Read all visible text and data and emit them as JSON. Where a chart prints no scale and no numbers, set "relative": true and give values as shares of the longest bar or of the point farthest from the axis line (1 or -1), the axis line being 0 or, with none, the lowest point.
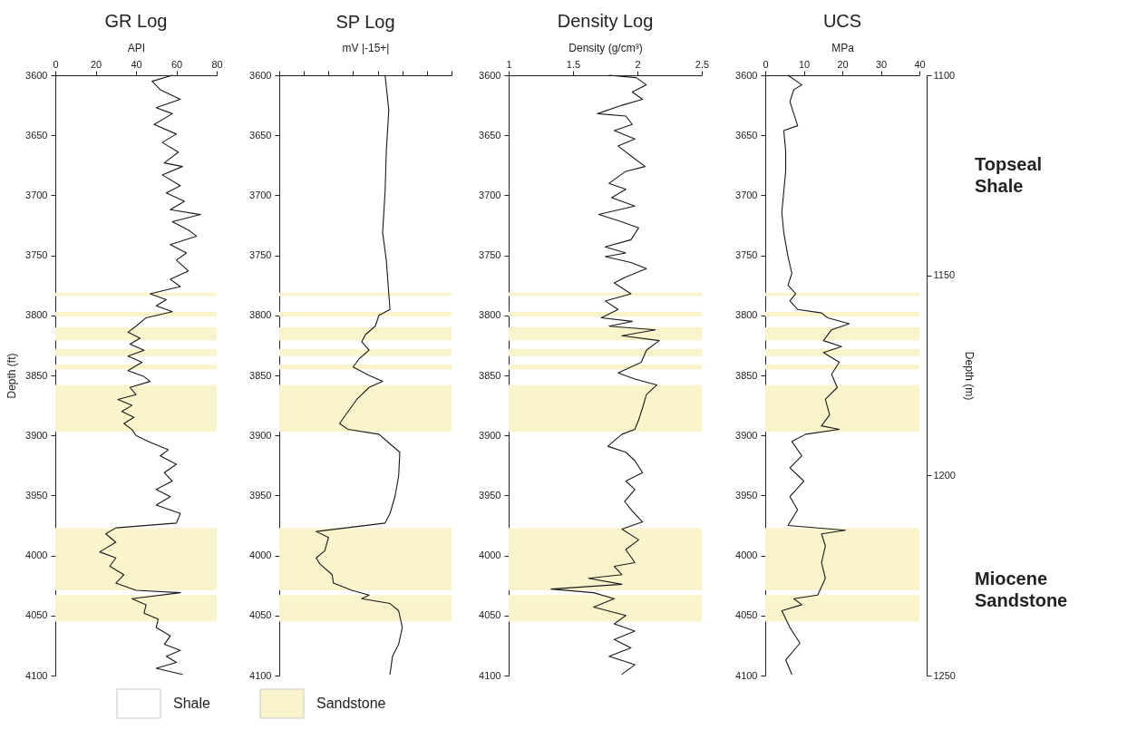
{
  "chart_data": [
    {
      "type": "line",
      "title": "GR Log",
      "xlabel": "API",
      "ylabel": "Depth (ft)",
      "orientation": "horizontal",
      "xlim": [
        0,
        80
      ],
      "xticks": [
        0,
        20,
        40,
        60,
        80
      ],
      "ylim": [
        4100,
        3600
      ],
      "yticks": [
        3600,
        3650,
        3700,
        3750,
        3800,
        3850,
        3900,
        3950,
        4000,
        4050,
        4100
      ],
      "x": [
        3600,
        3605,
        3612,
        3620,
        3627,
        3632,
        3641,
        3649,
        3656,
        3664,
        3673,
        3676,
        3683,
        3692,
        3698,
        3705,
        3712,
        3716,
        3722,
        3729,
        3734,
        3741,
        3748,
        3754,
        3763,
        3770,
        3776,
        3782,
        3787,
        3792,
        3797,
        3802,
        3809,
        3814,
        3819,
        3824,
        3829,
        3834,
        3839,
        3846,
        3851,
        3855,
        3860,
        3866,
        3870,
        3875,
        3880,
        3885,
        3890,
        3895,
        3900,
        3905,
        3912,
        3917,
        3924,
        3931,
        3938,
        3945,
        3951,
        3958,
        3965,
        3973,
        3977,
        3982,
        3989,
        3997,
        4002,
        4009,
        4016,
        4023,
        4029,
        4031,
        4036,
        4041,
        4048,
        4053,
        4060,
        4067,
        4074,
        4079,
        4084,
        4089,
        4094,
        4099
      ],
      "series": [
        {
          "color": "#1a1a1a",
          "values": [
            58,
            48,
            52,
            62,
            50,
            58,
            49,
            60,
            53,
            61,
            54,
            63,
            53,
            62,
            55,
            64,
            57,
            72,
            58,
            66,
            70,
            57,
            65,
            60,
            66,
            57,
            62,
            47,
            55,
            50,
            58,
            45,
            40,
            36,
            42,
            37,
            44,
            36,
            43,
            36,
            44,
            47,
            37,
            40,
            31,
            38,
            33,
            39,
            34,
            38,
            40,
            46,
            56,
            52,
            60,
            54,
            58,
            50,
            57,
            50,
            62,
            60,
            30,
            25,
            30,
            22,
            30,
            27,
            34,
            30,
            40,
            62,
            38,
            45,
            44,
            51,
            50,
            57,
            54,
            62,
            55,
            60,
            50,
            63
          ]
        }
      ],
      "bands": [
        {
          "axis": "y",
          "from": 3781,
          "to": 3784,
          "color": "#faf4cd"
        },
        {
          "axis": "y",
          "from": 3797,
          "to": 3801,
          "color": "#faf4cd"
        },
        {
          "axis": "y",
          "from": 3810,
          "to": 3821,
          "color": "#faf4cd"
        },
        {
          "axis": "y",
          "from": 3828,
          "to": 3834,
          "color": "#faf4cd"
        },
        {
          "axis": "y",
          "from": 3841,
          "to": 3845,
          "color": "#faf4cd"
        },
        {
          "axis": "y",
          "from": 3858,
          "to": 3897,
          "color": "#faf4cd"
        },
        {
          "axis": "y",
          "from": 3977,
          "to": 4029,
          "color": "#faf4cd"
        },
        {
          "axis": "y",
          "from": 4033,
          "to": 4055,
          "color": "#faf4cd"
        }
      ]
    },
    {
      "type": "line",
      "title": "SP Log",
      "xlabel": "mV |-15+|",
      "orientation": "horizontal",
      "relative": true,
      "ylim": [
        4100,
        3600
      ],
      "yticks": [
        3600,
        3650,
        3700,
        3750,
        3800,
        3850,
        3900,
        3950,
        4000,
        4050,
        4100
      ],
      "x": [
        3600,
        3629,
        3663,
        3697,
        3731,
        3754,
        3782,
        3795,
        3800,
        3809,
        3816,
        3822,
        3829,
        3836,
        3843,
        3850,
        3855,
        3860,
        3870,
        3880,
        3890,
        3895,
        3899,
        3907,
        3914,
        3934,
        3951,
        3965,
        3973,
        3980,
        3985,
        3996,
        4002,
        4007,
        4016,
        4023,
        4029,
        4033,
        4036,
        4040,
        4046,
        4060,
        4074,
        4084,
        4099
      ],
      "series": [
        {
          "color": "#1a1a1a",
          "values": [
            0.86,
            0.89,
            0.87,
            0.86,
            0.84,
            0.87,
            0.89,
            0.9,
            0.81,
            0.78,
            0.7,
            0.67,
            0.73,
            0.65,
            0.6,
            0.73,
            0.84,
            0.73,
            0.63,
            0.56,
            0.49,
            0.56,
            0.81,
            0.9,
            0.98,
            0.97,
            0.94,
            0.9,
            0.86,
            0.3,
            0.4,
            0.37,
            0.3,
            0.33,
            0.43,
            0.44,
            0.59,
            0.73,
            0.67,
            0.9,
            0.97,
            1,
            0.97,
            0.92,
            0.9
          ]
        }
      ],
      "bands": [
        {
          "axis": "y",
          "from": 3781,
          "to": 3784,
          "color": "#faf4cd"
        },
        {
          "axis": "y",
          "from": 3797,
          "to": 3801,
          "color": "#faf4cd"
        },
        {
          "axis": "y",
          "from": 3810,
          "to": 3821,
          "color": "#faf4cd"
        },
        {
          "axis": "y",
          "from": 3828,
          "to": 3834,
          "color": "#faf4cd"
        },
        {
          "axis": "y",
          "from": 3841,
          "to": 3845,
          "color": "#faf4cd"
        },
        {
          "axis": "y",
          "from": 3858,
          "to": 3897,
          "color": "#faf4cd"
        },
        {
          "axis": "y",
          "from": 3977,
          "to": 4029,
          "color": "#faf4cd"
        },
        {
          "axis": "y",
          "from": 4033,
          "to": 4055,
          "color": "#faf4cd"
        }
      ]
    },
    {
      "type": "line",
      "title": "Density Log",
      "xlabel": "Density (g/cm³)",
      "orientation": "horizontal",
      "xlim": [
        1,
        2.5
      ],
      "xticks": [
        1,
        1.5,
        2,
        2.5
      ],
      "ylim": [
        4100,
        3600
      ],
      "yticks": [
        3600,
        3650,
        3700,
        3750,
        3800,
        3850,
        3900,
        3950,
        4000,
        4050,
        4100
      ],
      "x": [
        3600,
        3602,
        3608,
        3614,
        3620,
        3625,
        3632,
        3634,
        3641,
        3646,
        3653,
        3659,
        3668,
        3676,
        3680,
        3690,
        3695,
        3702,
        3709,
        3716,
        3721,
        3727,
        3737,
        3743,
        3748,
        3751,
        3756,
        3761,
        3768,
        3773,
        3782,
        3788,
        3795,
        3802,
        3805,
        3809,
        3812,
        3817,
        3821,
        3829,
        3839,
        3848,
        3853,
        3858,
        3866,
        3877,
        3887,
        3895,
        3899,
        3909,
        3914,
        3921,
        3931,
        3938,
        3945,
        3955,
        3963,
        3972,
        3978,
        3987,
        3995,
        4006,
        4009,
        4016,
        4019,
        4024,
        4028,
        4031,
        4036,
        4043,
        4050,
        4057,
        4063,
        4070,
        4077,
        4084,
        4091,
        4099
      ],
      "series": [
        {
          "color": "#1a1a1a",
          "values": [
            1.78,
            1.99,
            2.07,
            1.96,
            2.04,
            1.88,
            1.69,
            1.91,
            1.96,
            1.82,
            1.98,
            1.85,
            1.96,
            2.06,
            1.91,
            1.78,
            1.91,
            1.8,
            1.98,
            1.7,
            1.85,
            2.01,
            1.95,
            1.75,
            1.91,
            1.75,
            1.95,
            2.07,
            1.91,
            1.82,
            1.95,
            1.75,
            1.85,
            1.72,
            1.96,
            1.78,
            2.14,
            1.88,
            2.17,
            2.07,
            2.03,
            1.85,
            1.98,
            2.15,
            2.07,
            2.04,
            2.01,
            1.98,
            1.88,
            1.77,
            1.91,
            1.98,
            2.04,
            1.91,
            1.98,
            1.9,
            1.96,
            2.04,
            1.88,
            2.01,
            1.91,
            1.98,
            1.82,
            1.88,
            1.62,
            1.88,
            1.33,
            1.66,
            1.82,
            1.66,
            1.91,
            1.82,
            1.98,
            1.82,
            1.95,
            1.78,
            1.98,
            1.88
          ]
        }
      ],
      "bands": [
        {
          "axis": "y",
          "from": 3781,
          "to": 3784,
          "color": "#faf4cd"
        },
        {
          "axis": "y",
          "from": 3797,
          "to": 3801,
          "color": "#faf4cd"
        },
        {
          "axis": "y",
          "from": 3810,
          "to": 3821,
          "color": "#faf4cd"
        },
        {
          "axis": "y",
          "from": 3828,
          "to": 3834,
          "color": "#faf4cd"
        },
        {
          "axis": "y",
          "from": 3841,
          "to": 3845,
          "color": "#faf4cd"
        },
        {
          "axis": "y",
          "from": 3858,
          "to": 3897,
          "color": "#faf4cd"
        },
        {
          "axis": "y",
          "from": 3977,
          "to": 4029,
          "color": "#faf4cd"
        },
        {
          "axis": "y",
          "from": 4033,
          "to": 4055,
          "color": "#faf4cd"
        }
      ]
    },
    {
      "type": "line",
      "title": "UCS",
      "xlabel": "MPa",
      "y2label": "Depth (m)",
      "orientation": "horizontal",
      "xlim": [
        0,
        40
      ],
      "xticks": [
        0,
        10,
        20,
        30,
        40
      ],
      "ylim": [
        4100,
        3600
      ],
      "yticks": [
        3600,
        3650,
        3700,
        3750,
        3800,
        3850,
        3900,
        3950,
        4000,
        4050,
        4100
      ],
      "y2lim": [
        1250,
        1100
      ],
      "y2ticks": [
        1100,
        1150,
        1200,
        1250
      ],
      "x": [
        3600,
        3608,
        3612,
        3622,
        3632,
        3642,
        3646,
        3663,
        3680,
        3697,
        3714,
        3731,
        3751,
        3765,
        3775,
        3782,
        3788,
        3795,
        3798,
        3802,
        3807,
        3812,
        3821,
        3826,
        3831,
        3839,
        3849,
        3860,
        3870,
        3883,
        3892,
        3895,
        3899,
        3905,
        3917,
        3927,
        3938,
        3951,
        3962,
        3975,
        3979,
        3982,
        3992,
        4006,
        4019,
        4033,
        4036,
        4041,
        4046,
        4060,
        4073,
        4087,
        4099
      ],
      "series": [
        {
          "color": "#1a1a1a",
          "values": [
            5.9,
            9.5,
            7.4,
            6.4,
            7.4,
            8.4,
            4.8,
            5.3,
            5.3,
            4.8,
            4.3,
            4.8,
            5.9,
            6.9,
            5.9,
            7.9,
            6.4,
            8.4,
            14.6,
            16.2,
            21.8,
            17.2,
            15.1,
            19.8,
            15.1,
            19.2,
            17.2,
            18.7,
            15.6,
            16.7,
            14.6,
            19.2,
            10.5,
            6.9,
            9.5,
            6.4,
            10,
            6.4,
            8.4,
            5.9,
            20.8,
            14.6,
            15.6,
            14.6,
            15.6,
            13.6,
            7.4,
            9.5,
            4.3,
            6.4,
            9,
            5.3,
            6.9
          ]
        }
      ],
      "bands": [
        {
          "axis": "y",
          "from": 3781,
          "to": 3784,
          "color": "#faf4cd"
        },
        {
          "axis": "y",
          "from": 3797,
          "to": 3801,
          "color": "#faf4cd"
        },
        {
          "axis": "y",
          "from": 3810,
          "to": 3821,
          "color": "#faf4cd"
        },
        {
          "axis": "y",
          "from": 3828,
          "to": 3834,
          "color": "#faf4cd"
        },
        {
          "axis": "y",
          "from": 3841,
          "to": 3845,
          "color": "#faf4cd"
        },
        {
          "axis": "y",
          "from": 3858,
          "to": 3897,
          "color": "#faf4cd"
        },
        {
          "axis": "y",
          "from": 3977,
          "to": 4029,
          "color": "#faf4cd"
        },
        {
          "axis": "y",
          "from": 4033,
          "to": 4055,
          "color": "#faf4cd"
        }
      ],
      "annotations": [
        "Topseal Shale",
        "Miocene Sandstone"
      ]
    },
    {
      "type": "other",
      "categories": [
        "Shale",
        "Sandstone"
      ],
      "colors": [
        "#ffffff",
        "#faf4cd"
      ]
    }
  ]
}
